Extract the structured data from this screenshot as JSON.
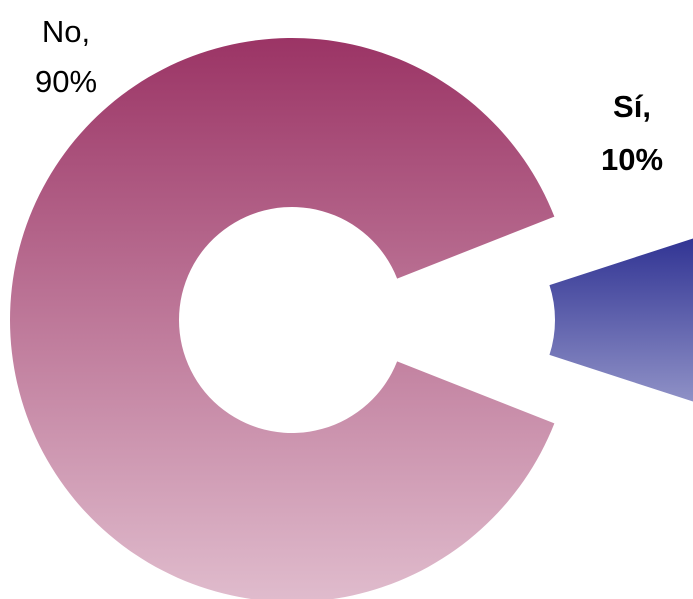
{
  "chart_data": {
    "type": "pie",
    "variant": "doughnut",
    "exploded_slice": "Sí",
    "slices": [
      {
        "label": "Sí",
        "value": 10,
        "label_text": [
          "Sí,",
          "10%"
        ],
        "label_bold": true,
        "color_top": "#2e3192",
        "color_bottom": "#9294c8"
      },
      {
        "label": "No",
        "value": 90,
        "label_text": [
          "No,",
          "90%"
        ],
        "label_bold": false,
        "color_top": "#9b3465",
        "color_bottom": "#e0bccd"
      }
    ],
    "title": "",
    "legend": "none"
  }
}
